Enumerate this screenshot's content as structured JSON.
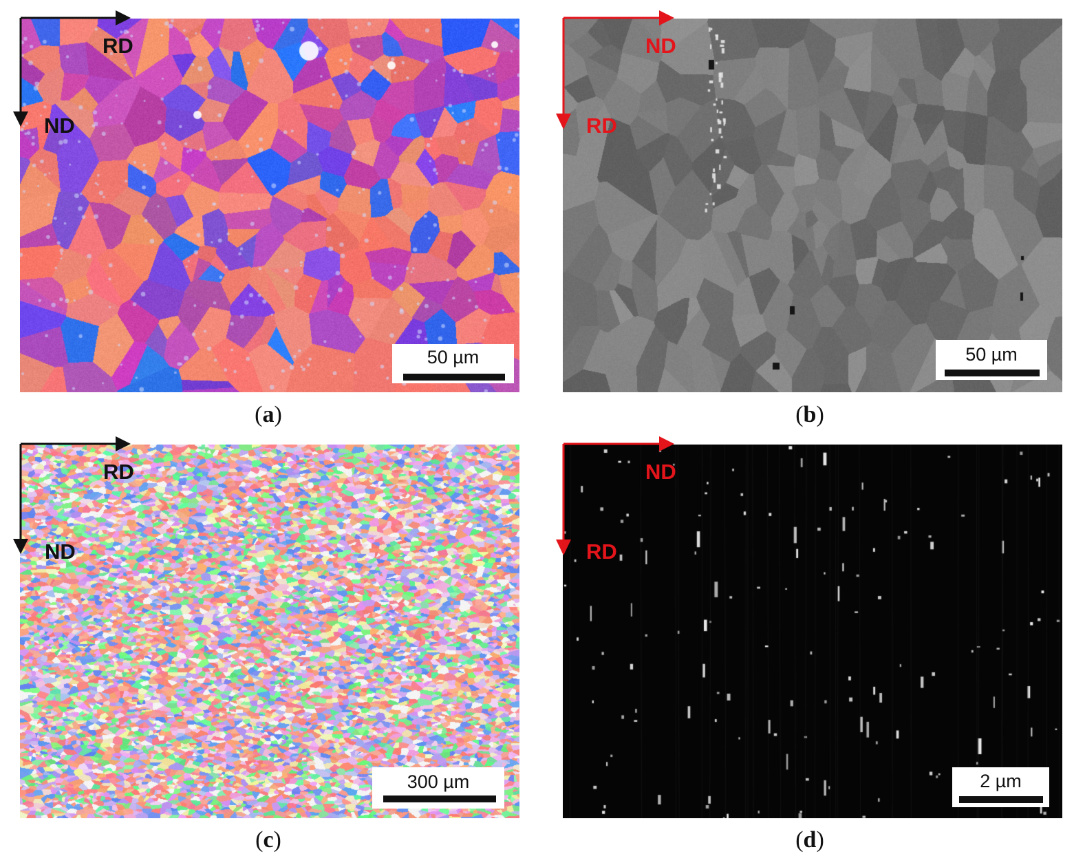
{
  "panels": [
    {
      "id": "a",
      "caption_letter": "a",
      "axis_labels": {
        "horizontal": "RD",
        "vertical": "ND"
      },
      "axis_color": "#111111",
      "scale_bar": "50 µm",
      "image_kind": "optical-micrograph-color-etched"
    },
    {
      "id": "b",
      "caption_letter": "b",
      "axis_labels": {
        "horizontal": "ND",
        "vertical": "RD"
      },
      "axis_color": "#e4141b",
      "scale_bar": "50 µm",
      "image_kind": "sem-backscatter-grains"
    },
    {
      "id": "c",
      "caption_letter": "c",
      "axis_labels": {
        "horizontal": "RD",
        "vertical": "ND"
      },
      "axis_color": "#111111",
      "scale_bar": "300 µm",
      "image_kind": "ebsd-ipf-map"
    },
    {
      "id": "d",
      "caption_letter": "d",
      "axis_labels": {
        "horizontal": "ND",
        "vertical": "RD"
      },
      "axis_color": "#e4141b",
      "scale_bar": "2 µm",
      "image_kind": "sem-precipitates-dark-field"
    }
  ]
}
